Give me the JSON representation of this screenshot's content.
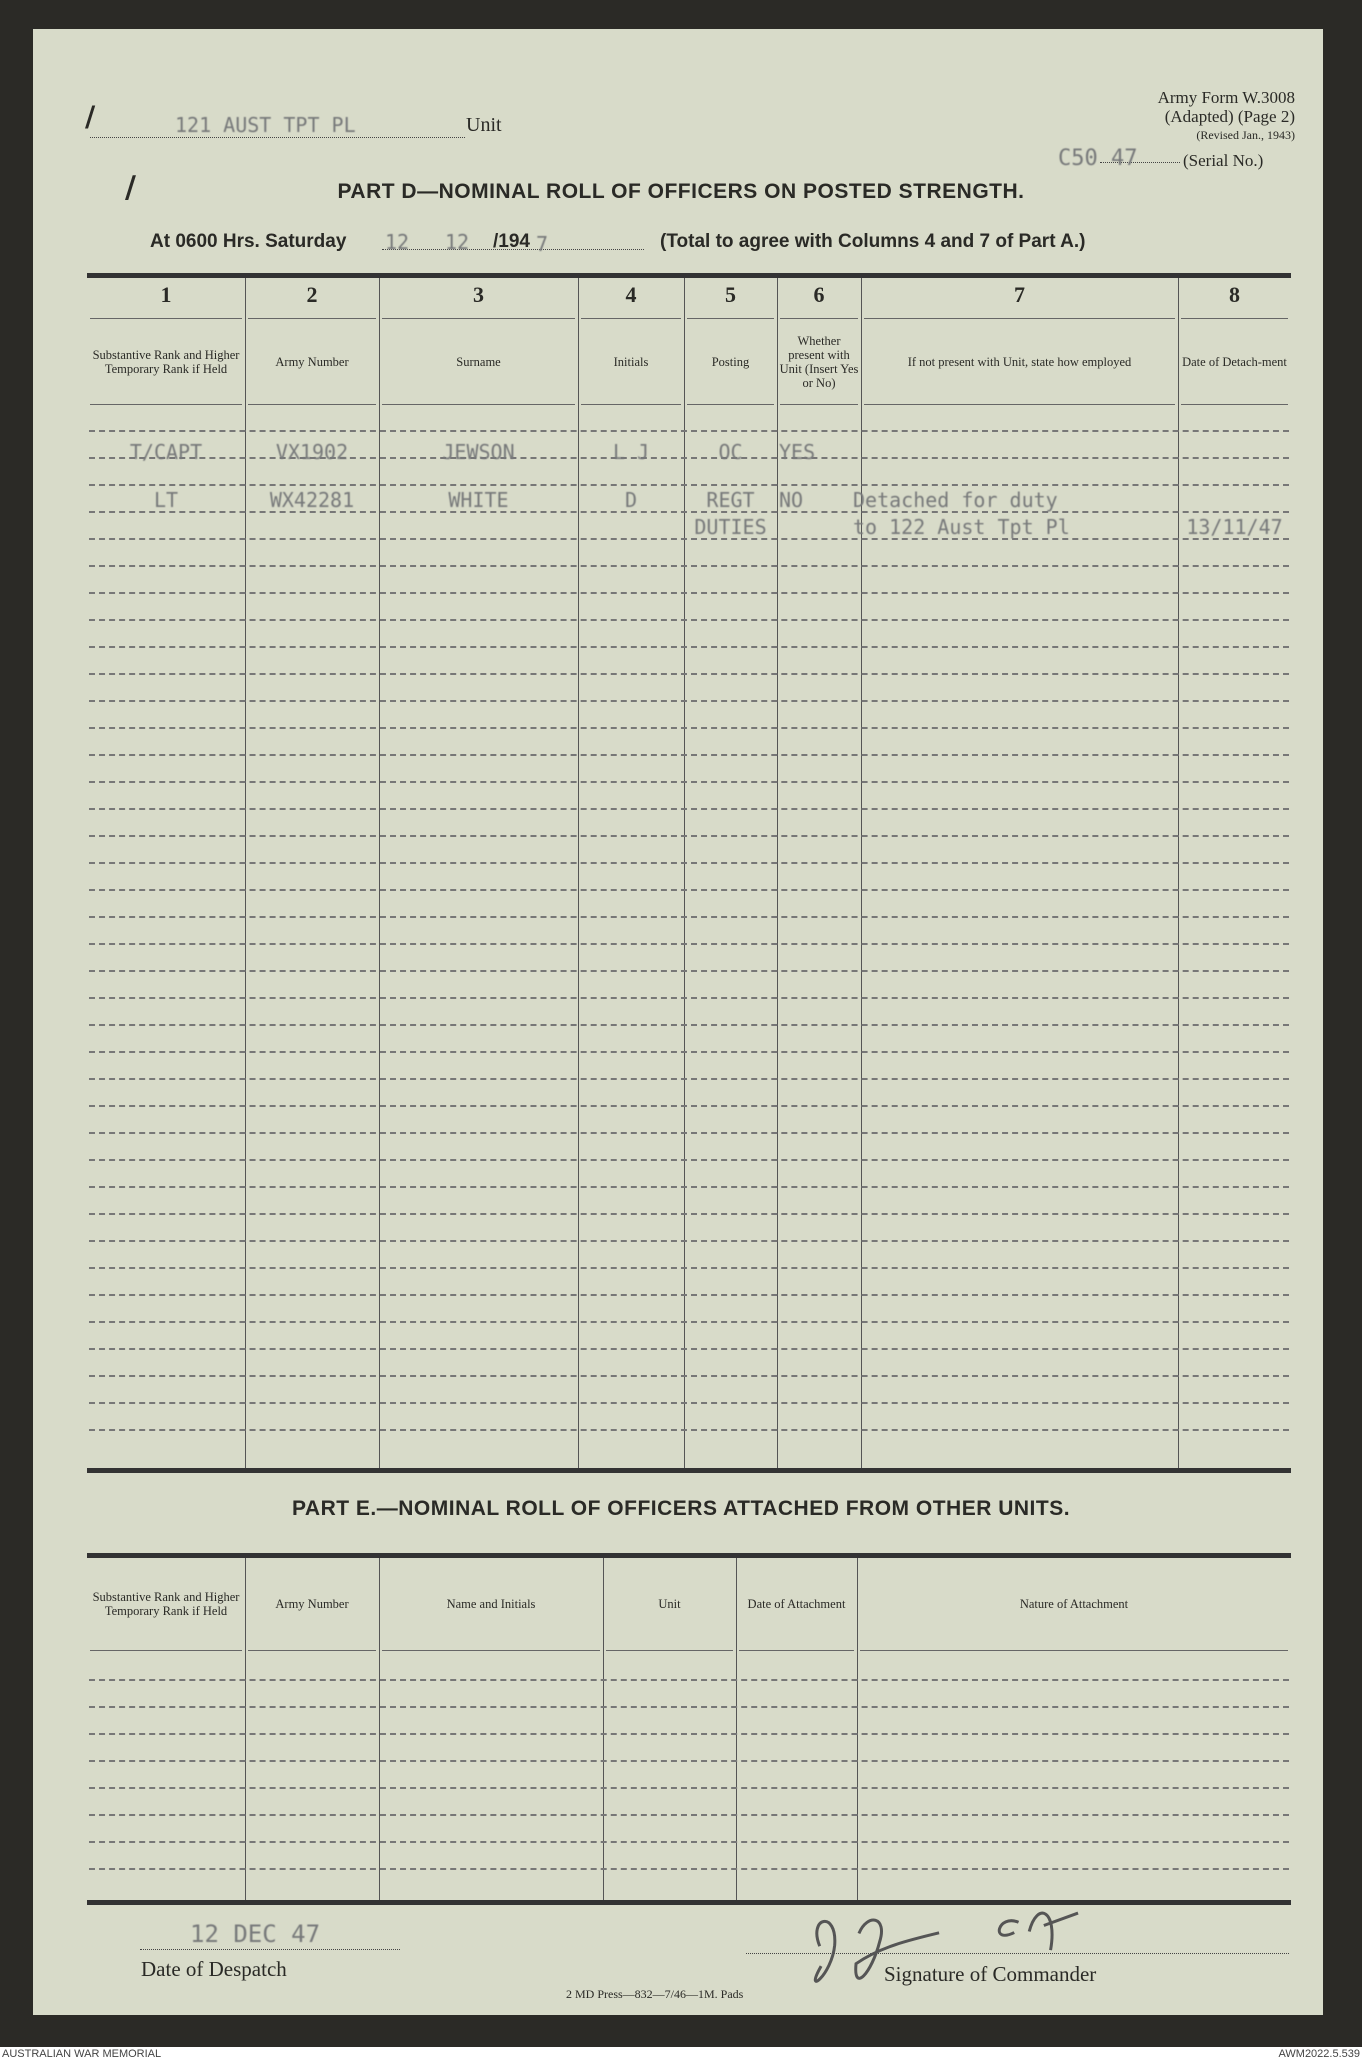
{
  "form": {
    "form_id": "Army Form W.3008",
    "adapted": "(Adapted) (Page 2)",
    "revised": "(Revised Jan., 1943)",
    "unit_value": "121 AUST TPT PL",
    "unit_label": "Unit",
    "serial_value": "C50 47",
    "serial_label": "(Serial No.)"
  },
  "part_d": {
    "title": "PART D—NOMINAL ROLL OF OFFICERS ON POSTED STRENGTH.",
    "at_label": "At 0600 Hrs. Saturday",
    "date_day": "12",
    "date_month": "12",
    "date_year_prefix": "/194",
    "date_year_digit": "7",
    "note": "(Total to agree with Columns 4 and 7 of Part A.)",
    "column_numbers": [
      "1",
      "2",
      "3",
      "4",
      "5",
      "6",
      "7",
      "8"
    ],
    "column_headers": [
      "Substantive Rank and Higher Temporary Rank if Held",
      "Army Number",
      "Surname",
      "Initials",
      "Posting",
      "Whether present with Unit (Insert Yes or No)",
      "If not present with Unit, state how employed",
      "Date of Detach-ment"
    ],
    "rows": [
      {
        "rank": "T/CAPT",
        "number": "VX1902",
        "surname": "JEWSON",
        "initials": "L J",
        "posting": "OC",
        "present": "YES",
        "employed": "",
        "date": ""
      },
      {
        "rank": "LT",
        "number": "WX42281",
        "surname": "WHITE",
        "initials": "D",
        "posting": "REGT",
        "present": "NO",
        "employed": "Detached for duty",
        "date": ""
      },
      {
        "rank": "",
        "number": "",
        "surname": "",
        "initials": "",
        "posting": "DUTIES",
        "present": "",
        "employed": "to 122 Aust Tpt Pl",
        "date": "13/11/47"
      }
    ]
  },
  "part_e": {
    "title": "PART E.—NOMINAL ROLL OF OFFICERS ATTACHED FROM OTHER UNITS.",
    "column_headers": [
      "Substantive Rank and Higher Temporary Rank if Held",
      "Army Number",
      "Name and Initials",
      "Unit",
      "Date of Attachment",
      "Nature of Attachment"
    ]
  },
  "footer": {
    "despatch_value": "12 DEC 47",
    "despatch_label": "Date of Despatch",
    "signature": "L Jewson Capt",
    "signature_label": "Signature of Commander",
    "imprint": "2 MD Press—832—7/46—1M. Pads"
  },
  "archive": {
    "institution": "AUSTRALIAN WAR MEMORIAL",
    "accession": "AWM2022.5.539"
  }
}
